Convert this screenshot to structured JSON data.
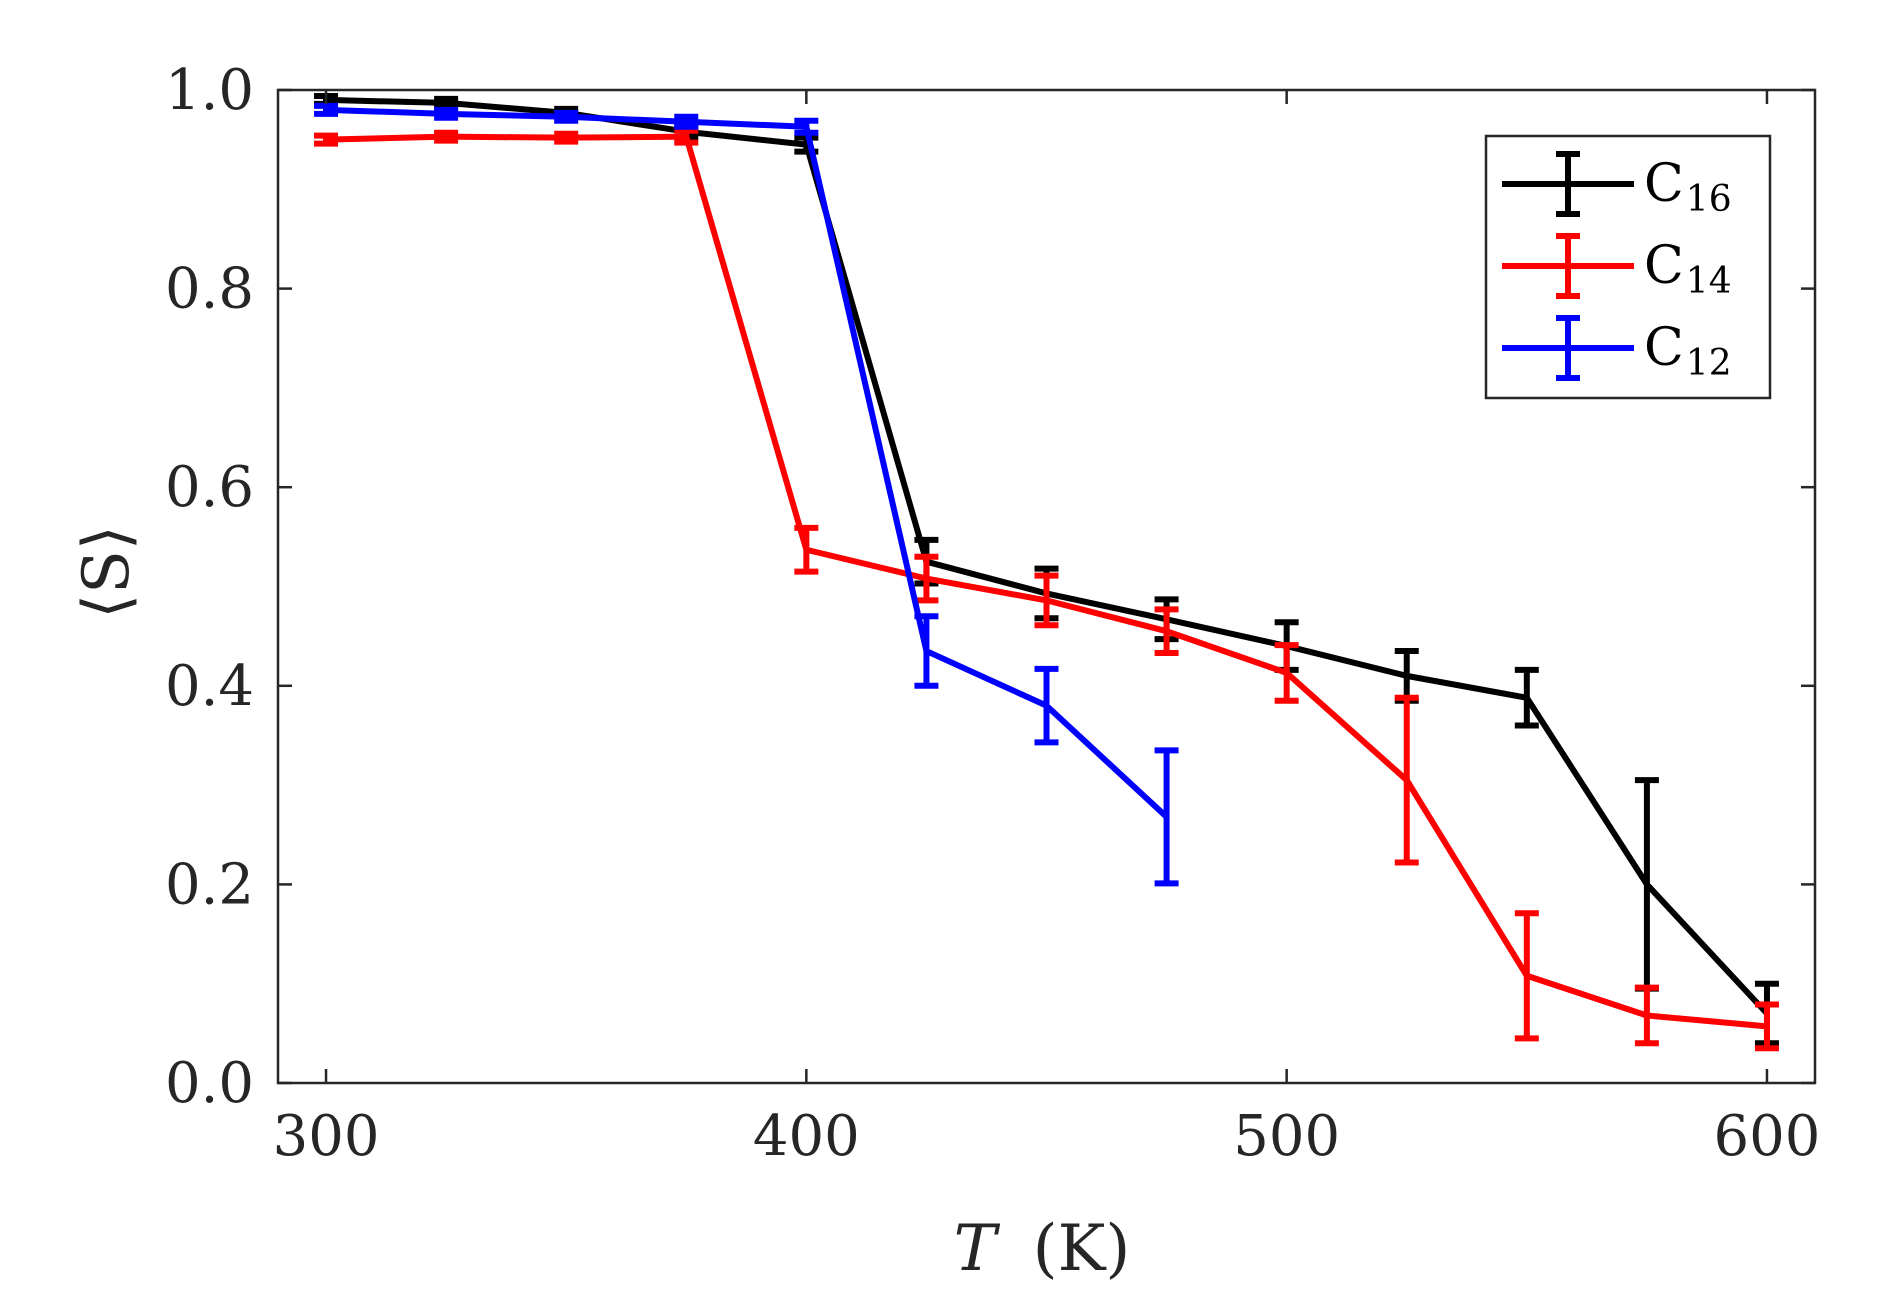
{
  "chart_data": {
    "type": "line",
    "title": "",
    "xlabel": "T",
    "xlabel_unit": "(K)",
    "ylabel": "⟨S⟩",
    "xlim": [
      290,
      610
    ],
    "ylim": [
      0.0,
      1.0
    ],
    "xticks": [
      300,
      400,
      500,
      600
    ],
    "xtick_labels": [
      "300",
      "400",
      "500",
      "600"
    ],
    "yticks": [
      0.0,
      0.2,
      0.4,
      0.6,
      0.8,
      1.0
    ],
    "ytick_labels": [
      "0.0",
      "0.2",
      "0.4",
      "0.6",
      "0.8",
      "1.0"
    ],
    "grid": false,
    "legend_position": "top-right",
    "series": [
      {
        "name": "C16",
        "label_main": "C",
        "label_sub": "16",
        "color": "#000000",
        "x": [
          300,
          325,
          350,
          375,
          400,
          425,
          450,
          475,
          500,
          525,
          550,
          575,
          600
        ],
        "y": [
          0.99,
          0.987,
          0.977,
          0.958,
          0.945,
          0.525,
          0.493,
          0.467,
          0.44,
          0.41,
          0.388,
          0.2,
          0.07
        ],
        "err": [
          0.004,
          0.004,
          0.004,
          0.006,
          0.007,
          0.022,
          0.025,
          0.02,
          0.024,
          0.025,
          0.028,
          0.105,
          0.03
        ]
      },
      {
        "name": "C14",
        "label_main": "C",
        "label_sub": "14",
        "color": "#ff0000",
        "x": [
          300,
          325,
          350,
          375,
          400,
          425,
          450,
          475,
          500,
          525,
          550,
          575,
          600
        ],
        "y": [
          0.95,
          0.953,
          0.952,
          0.953,
          0.537,
          0.508,
          0.486,
          0.455,
          0.413,
          0.305,
          0.108,
          0.068,
          0.057
        ],
        "err": [
          0.004,
          0.004,
          0.004,
          0.006,
          0.022,
          0.022,
          0.025,
          0.022,
          0.028,
          0.083,
          0.063,
          0.028,
          0.022
        ]
      },
      {
        "name": "C12",
        "label_main": "C",
        "label_sub": "12",
        "color": "#0000ff",
        "x": [
          300,
          325,
          350,
          375,
          400,
          425,
          450,
          475
        ],
        "y": [
          0.98,
          0.976,
          0.973,
          0.968,
          0.963,
          0.435,
          0.38,
          0.268
        ],
        "err": [
          0.004,
          0.004,
          0.004,
          0.005,
          0.006,
          0.035,
          0.037,
          0.067
        ]
      }
    ]
  }
}
